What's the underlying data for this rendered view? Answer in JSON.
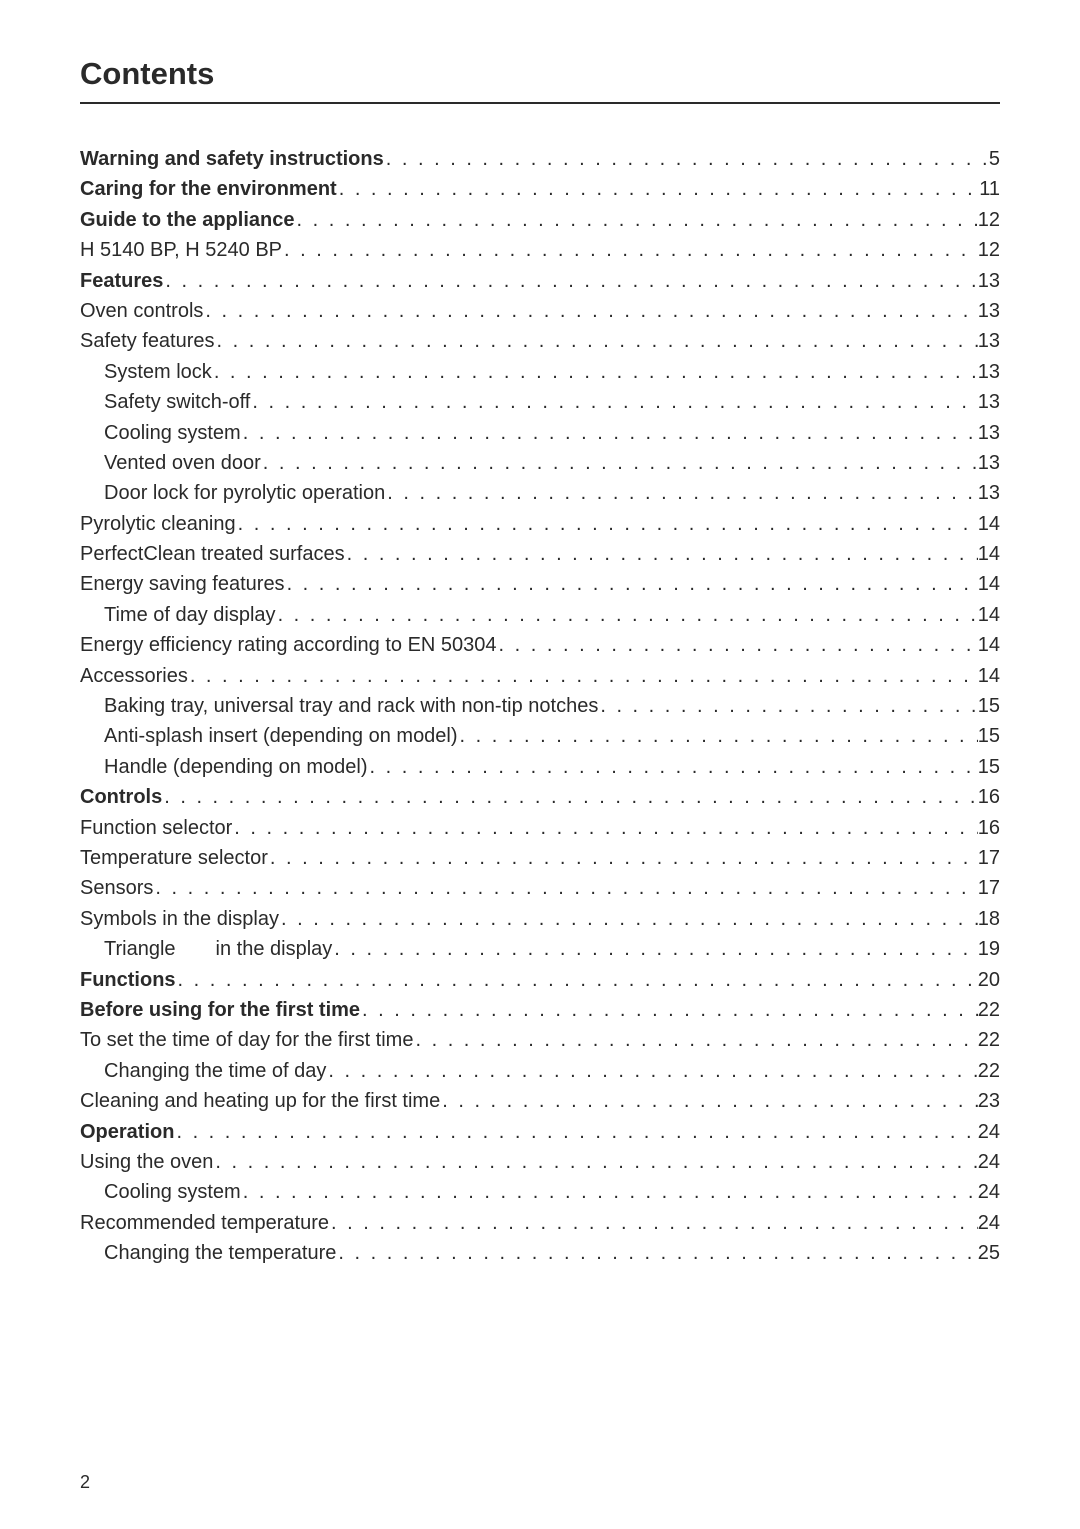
{
  "heading": "Contents",
  "page_number": "2",
  "dot_fill": ". . . . . . . . . . . . . . . . . . . . . . . . . . . . . . . . . . . . . . . . . . . . . . . . . . . . . . . . . . . . . . . . . . . . . . . . . . . . . . . . . . . . . . . . . . . . . . . . . . . . . . . . . . . . . . . . . . . . . . . . . . . . . . . . . .",
  "entries": [
    {
      "label": "Warning and safety instructions",
      "page": "5",
      "bold": true,
      "indent": 0
    },
    {
      "label": "Caring for the environment",
      "page": "11",
      "bold": true,
      "indent": 0
    },
    {
      "label": "Guide to the appliance",
      "page": "12",
      "bold": true,
      "indent": 0
    },
    {
      "label": "H 5140 BP, H 5240 BP",
      "page": "12",
      "bold": false,
      "indent": 0
    },
    {
      "label": "Features",
      "page": "13",
      "bold": true,
      "indent": 0
    },
    {
      "label": "Oven controls",
      "page": "13",
      "bold": false,
      "indent": 0
    },
    {
      "label": "Safety features",
      "page": "13",
      "bold": false,
      "indent": 0
    },
    {
      "label": "System lock",
      "page": "13",
      "bold": false,
      "indent": 1
    },
    {
      "label": "Safety switch-off",
      "page": "13",
      "bold": false,
      "indent": 1
    },
    {
      "label": "Cooling system",
      "page": "13",
      "bold": false,
      "indent": 1
    },
    {
      "label": "Vented oven door",
      "page": "13",
      "bold": false,
      "indent": 1
    },
    {
      "label": "Door lock for pyrolytic operation",
      "page": "13",
      "bold": false,
      "indent": 1
    },
    {
      "label": "Pyrolytic cleaning",
      "page": "14",
      "bold": false,
      "indent": 0
    },
    {
      "label": "PerfectClean treated surfaces",
      "page": "14",
      "bold": false,
      "indent": 0
    },
    {
      "label": "Energy saving features",
      "page": "14",
      "bold": false,
      "indent": 0
    },
    {
      "label": "Time of day display",
      "page": "14",
      "bold": false,
      "indent": 1
    },
    {
      "label": "Energy efficiency rating according to EN 50304",
      "page": "14",
      "bold": false,
      "indent": 0
    },
    {
      "label": "Accessories",
      "page": "14",
      "bold": false,
      "indent": 0
    },
    {
      "label": "Baking tray, universal tray and rack with non-tip notches",
      "page": "15",
      "bold": false,
      "indent": 1
    },
    {
      "label": "Anti-splash insert (depending on model)",
      "page": "15",
      "bold": false,
      "indent": 1
    },
    {
      "label": "Handle (depending on model)",
      "page": "15",
      "bold": false,
      "indent": 1
    },
    {
      "label": "Controls",
      "page": "16",
      "bold": true,
      "indent": 0
    },
    {
      "label": "Function selector",
      "page": "16",
      "bold": false,
      "indent": 0
    },
    {
      "label": "Temperature selector",
      "page": "17",
      "bold": false,
      "indent": 0
    },
    {
      "label": "Sensors",
      "page": "17",
      "bold": false,
      "indent": 0
    },
    {
      "label": "Symbols in the display",
      "page": "18",
      "bold": false,
      "indent": 0
    },
    {
      "label": "Triangle",
      "label_suffix": "in the display",
      "page": "19",
      "bold": false,
      "indent": 1,
      "has_gap": true
    },
    {
      "label": "Functions",
      "page": "20",
      "bold": true,
      "indent": 0
    },
    {
      "label": "Before using for the first time",
      "page": "22",
      "bold": true,
      "indent": 0
    },
    {
      "label": "To set the time of day for the first time",
      "page": "22",
      "bold": false,
      "indent": 0
    },
    {
      "label": "Changing the time of day",
      "page": "22",
      "bold": false,
      "indent": 1
    },
    {
      "label": "Cleaning and heating up for the first time",
      "page": "23",
      "bold": false,
      "indent": 0
    },
    {
      "label": "Operation",
      "page": "24",
      "bold": true,
      "indent": 0
    },
    {
      "label": "Using the oven",
      "page": "24",
      "bold": false,
      "indent": 0
    },
    {
      "label": "Cooling system",
      "page": "24",
      "bold": false,
      "indent": 1
    },
    {
      "label": "Recommended temperature",
      "page": "24",
      "bold": false,
      "indent": 0
    },
    {
      "label": "Changing the temperature",
      "page": "25",
      "bold": false,
      "indent": 1
    }
  ]
}
